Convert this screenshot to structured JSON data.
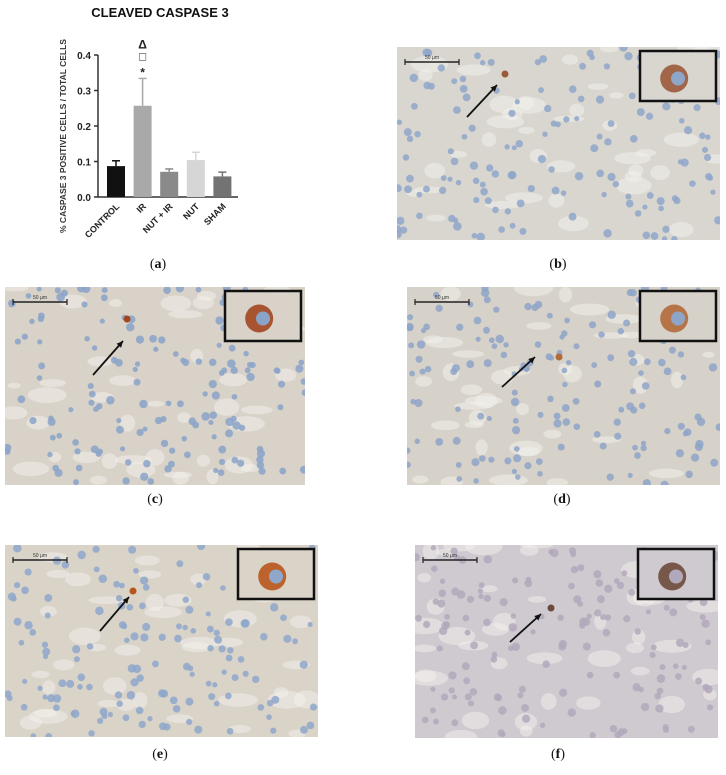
{
  "chart_data": {
    "type": "bar",
    "title": "CLEAVED CASPASE 3",
    "xlabel": "",
    "ylabel": "% CASPASE 3 POSITIVE CELLS / TOTAL CELLS",
    "ylim": [
      0,
      0.4
    ],
    "yticks": [
      "0.0",
      "0.1",
      "0.2",
      "0.3",
      "0.4"
    ],
    "categories": [
      "CONTROL",
      "IR",
      "NUT + IR",
      "NUT",
      "SHAM"
    ],
    "values": [
      0.087,
      0.257,
      0.071,
      0.104,
      0.058
    ],
    "errors": [
      0.015,
      0.077,
      0.008,
      0.022,
      0.012
    ],
    "colors": [
      "#111111",
      "#a9a9a9",
      "#8a8a8a",
      "#d6d6d6",
      "#737373"
    ],
    "annotations": {
      "IR": [
        "Δ",
        "□",
        "*"
      ]
    },
    "grid": false
  },
  "panels": [
    {
      "label": "a"
    },
    {
      "label": "b",
      "scale_bar": "50 µm",
      "bg": "#d9d6cf",
      "nucleus": "#8ea6c9",
      "stain": "#9a5a3a"
    },
    {
      "label": "c",
      "scale_bar": "50 µm",
      "bg": "#d8d2c8",
      "nucleus": "#8aa3c8",
      "stain": "#a3461f"
    },
    {
      "label": "d",
      "scale_bar": "50 µm",
      "bg": "#d6d2c9",
      "nucleus": "#8ea5c8",
      "stain": "#b36a3a"
    },
    {
      "label": "e",
      "scale_bar": "50 µm",
      "bg": "#d9d3c8",
      "nucleus": "#8ea7cb",
      "stain": "#b8561c"
    },
    {
      "label": "f",
      "scale_bar": "50 µm",
      "bg": "#cfc9d0",
      "nucleus": "#b2a8bb",
      "stain": "#6e4a3c"
    }
  ]
}
